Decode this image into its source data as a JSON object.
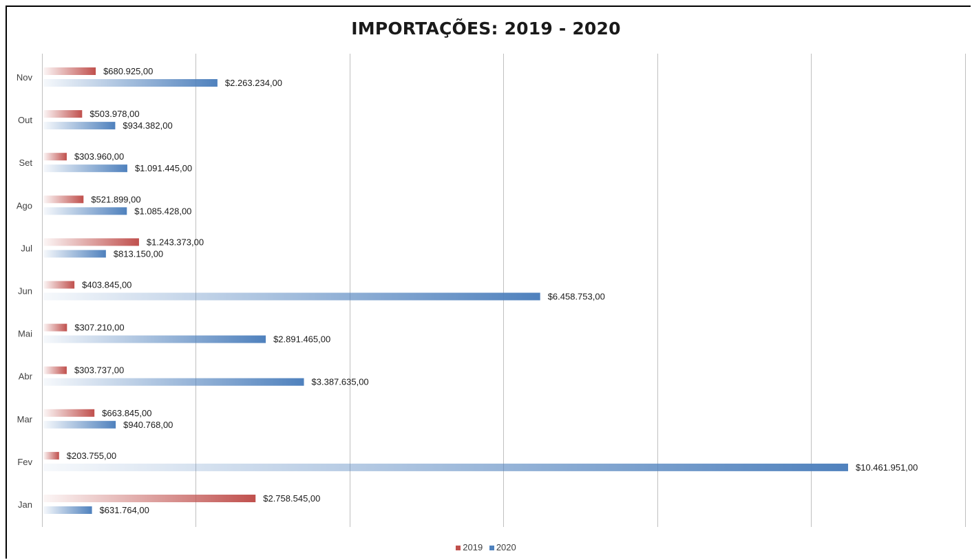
{
  "chart_data": {
    "type": "bar",
    "orientation": "horizontal",
    "title": "IMPORTAÇÕES: 2019 - 2020",
    "categories": [
      "Jan",
      "Fev",
      "Mar",
      "Abr",
      "Mai",
      "Jun",
      "Jul",
      "Ago",
      "Set",
      "Out",
      "Nov"
    ],
    "series": [
      {
        "name": "2019",
        "color": "#c0504d",
        "values": [
          2758545,
          203755,
          663845,
          303737,
          307210,
          403845,
          1243373,
          521899,
          303960,
          503978,
          680925
        ],
        "labels": [
          "$2.758.545,00",
          "$203.755,00",
          "$663.845,00",
          "$303.737,00",
          "$307.210,00",
          "$403.845,00",
          "$1.243.373,00",
          "$521.899,00",
          "$303.960,00",
          "$503.978,00",
          "$680.925,00"
        ]
      },
      {
        "name": "2020",
        "color": "#4f81bd",
        "values": [
          631764,
          10461951,
          940768,
          3387635,
          2891465,
          6458753,
          813150,
          1085428,
          1091445,
          934382,
          2263234
        ],
        "labels": [
          "$631.764,00",
          "$10.461.951,00",
          "$940.768,00",
          "$3.387.635,00",
          "$2.891.465,00",
          "$6.458.753,00",
          "$813.150,00",
          "$1.085.428,00",
          "$1.091.445,00",
          "$934.382,00",
          "$2.263.234,00"
        ]
      }
    ],
    "xlim": [
      0,
      12000000
    ],
    "gridlines": "vertical",
    "legend": "bottom"
  }
}
